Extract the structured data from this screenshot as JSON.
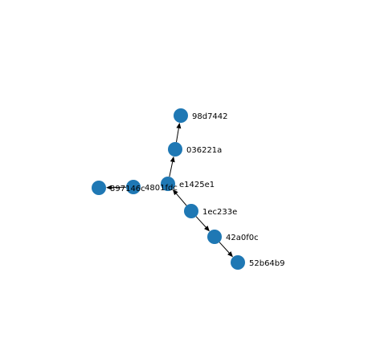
{
  "graph": {
    "node_color": "#1f78b4",
    "edge_color": "#000000",
    "directed": true,
    "nodes": [
      {
        "id": "98d7442",
        "label": "98d7442"
      },
      {
        "id": "036221a",
        "label": "036221a"
      },
      {
        "id": "e1425e1",
        "label": "e1425e1"
      },
      {
        "id": "4801fdc",
        "label": "4801fdc"
      },
      {
        "id": "397146c",
        "label": "397146c"
      },
      {
        "id": "1ec233e",
        "label": "1ec233e"
      },
      {
        "id": "42a0f0c",
        "label": "42a0f0c"
      },
      {
        "id": "52b64b9",
        "label": "52b64b9"
      }
    ],
    "edges": [
      {
        "source": "036221a",
        "target": "98d7442"
      },
      {
        "source": "e1425e1",
        "target": "036221a"
      },
      {
        "source": "1ec233e",
        "target": "e1425e1"
      },
      {
        "source": "1ec233e",
        "target": "42a0f0c"
      },
      {
        "source": "42a0f0c",
        "target": "52b64b9"
      },
      {
        "source": "4801fdc",
        "target": "397146c"
      }
    ]
  }
}
